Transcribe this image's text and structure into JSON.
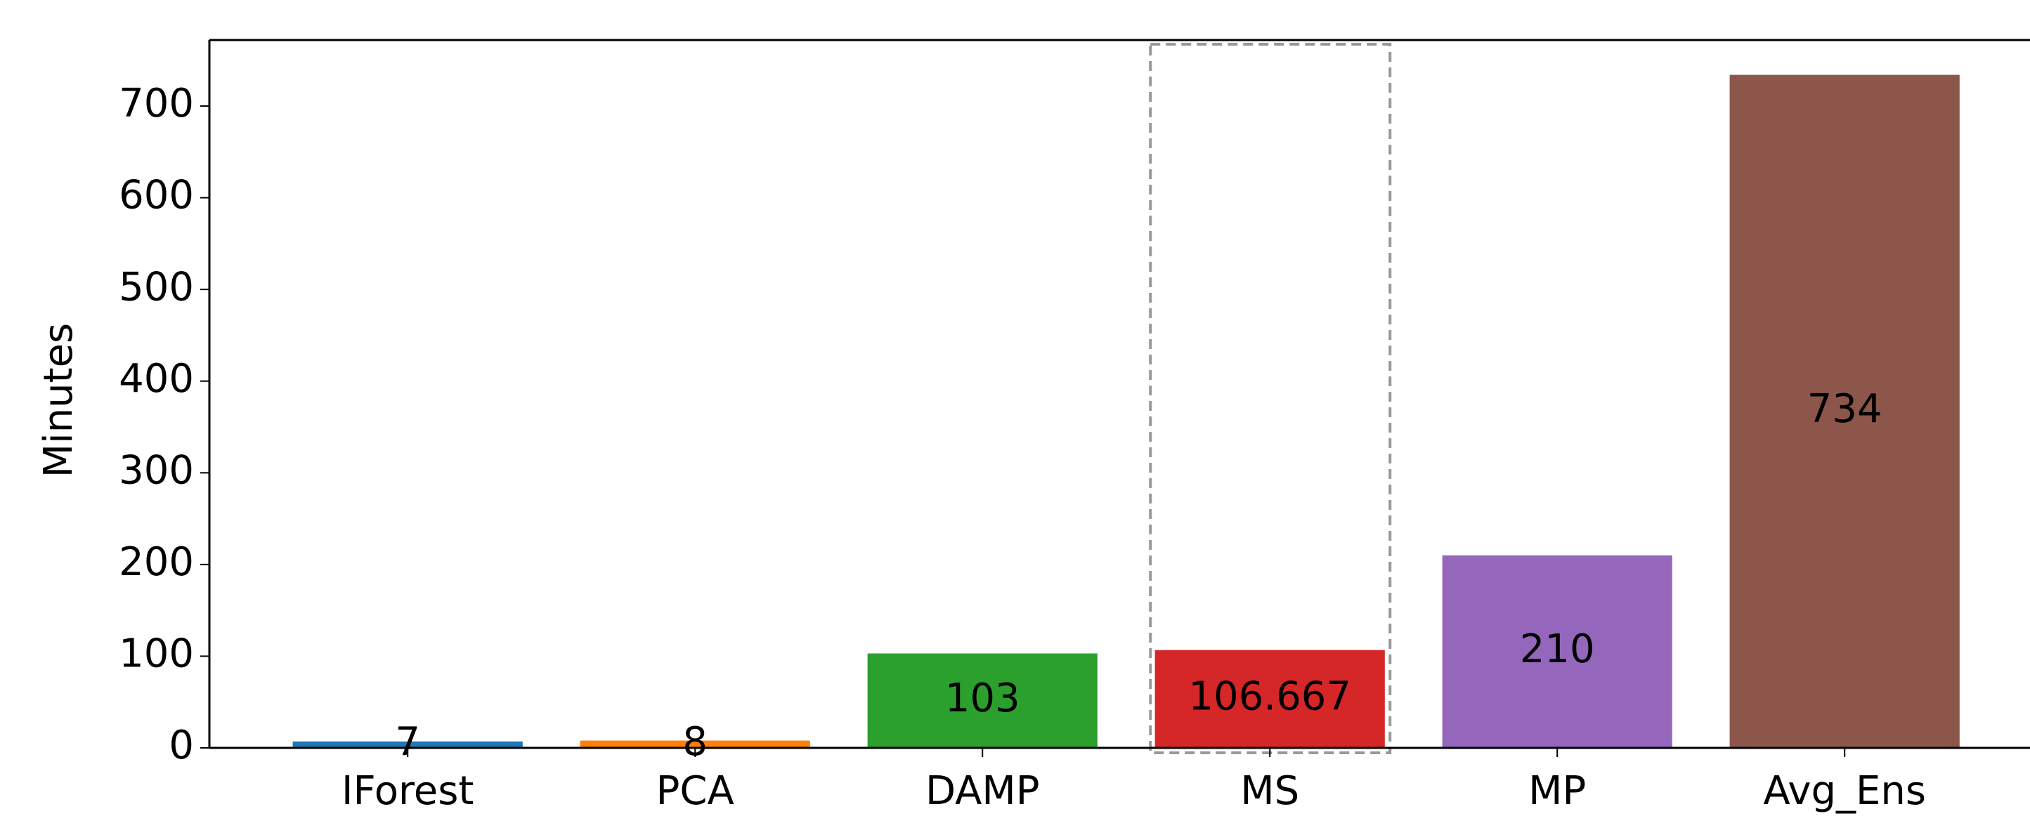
{
  "chart_data": {
    "type": "bar",
    "y_label": "Minutes",
    "categories": [
      "IForest",
      "PCA",
      "DAMP",
      "MS",
      "MP",
      "Avg_Ens"
    ],
    "values": [
      7,
      8,
      103,
      106.667,
      210,
      734
    ],
    "colors": [
      "#1f77b4",
      "#ff7f0e",
      "#2ca02c",
      "#d62728",
      "#9467bd",
      "#8c564b"
    ],
    "ylim": [
      0,
      772
    ],
    "yticks": [
      0,
      100,
      200,
      300,
      400,
      500,
      600,
      700
    ],
    "grid": false
  }
}
